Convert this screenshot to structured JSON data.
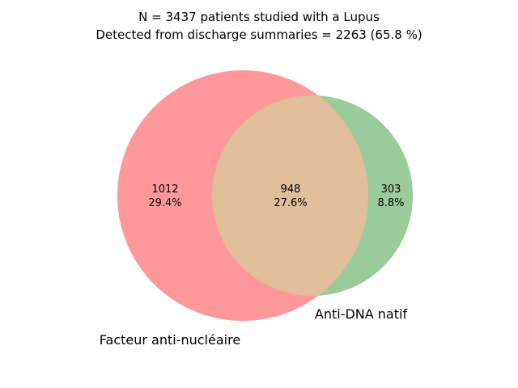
{
  "header": {
    "title_line1": "N = 3437 patients studied with a Lupus",
    "title_line2": "Detected from discharge summaries = 2263 (65.8 %)"
  },
  "venn": {
    "sets": [
      {
        "name": "Facteur anti-nucléaire",
        "color": "#ff9999"
      },
      {
        "name": "Anti-DNA natif",
        "color": "#99cc99"
      }
    ],
    "overlap_color": "#e0be99",
    "regions": {
      "only_a": {
        "count": "1012",
        "percent": "29.4%"
      },
      "both": {
        "count": "948",
        "percent": "27.6%"
      },
      "only_b": {
        "count": "303",
        "percent": "8.8%"
      }
    }
  }
}
